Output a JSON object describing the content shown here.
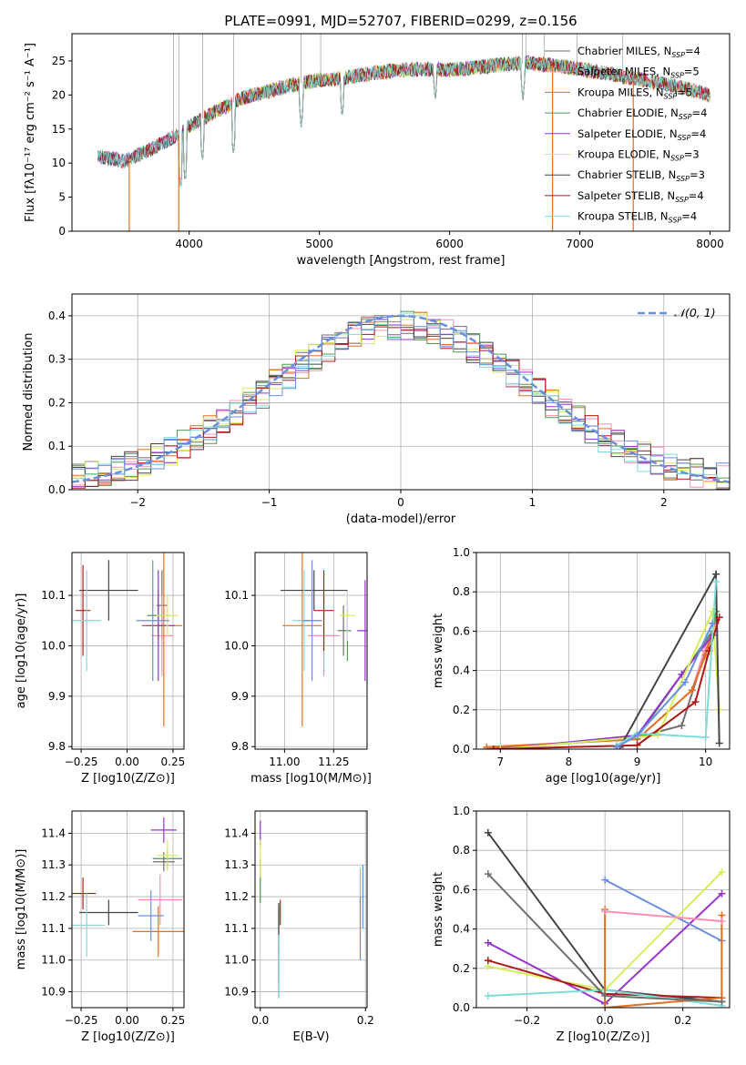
{
  "figure_title": "PLATE=0991, MJD=52707, FIBERID=0299, z=0.156",
  "series_colors": {
    "Chabrier MILES": "#6f6f6f",
    "Salpeter MILES": "#ff8fb0",
    "Kroupa MILES": "#e07020",
    "Chabrier ELODIE": "#4f9a4f",
    "Salpeter ELODIE": "#9932cc",
    "Kroupa ELODIE": "#d4ef5a",
    "Chabrier STELIB": "#444444",
    "Salpeter STELIB": "#b01818",
    "Kroupa STELIB": "#7fdcd6",
    "extra": "#6a8fdf"
  },
  "chart_data": [
    {
      "id": "spectrum",
      "type": "line",
      "title": "PLATE=0991, MJD=52707, FIBERID=0299, z=0.156",
      "xlabel": "wavelength [Angstrom, rest frame]",
      "ylabel": "Flux [fλ10⁻¹⁷ erg cm⁻² s⁻¹ A⁻¹]",
      "xlim": [
        3100,
        8150
      ],
      "ylim": [
        0,
        29
      ],
      "xticks": [
        "4000",
        "5000",
        "6000",
        "7000",
        "8000"
      ],
      "yticks": [
        "0",
        "5",
        "10",
        "15",
        "20",
        "25"
      ],
      "xtick_values": [
        4000,
        5000,
        6000,
        7000,
        8000
      ],
      "ytick_values": [
        0,
        5,
        10,
        15,
        20,
        25
      ],
      "legend_position": "upper right",
      "legend": [
        "Chabrier MILES, N_SSP=4",
        "Salpeter MILES, N_SSP=5",
        "Kroupa MILES, N_SSP=5",
        "Chabrier ELODIE, N_SSP=4",
        "Salpeter ELODIE, N_SSP=4",
        "Kroupa ELODIE, N_SSP=3",
        "Chabrier STELIB, N_SSP=3",
        "Salpeter STELIB, N_SSP=4",
        "Kroupa STELIB, N_SSP=4"
      ],
      "continuum": {
        "x": [
          3300,
          3500,
          3700,
          3900,
          4000,
          4200,
          4400,
          4600,
          4800,
          5000,
          5200,
          5400,
          5600,
          5800,
          6000,
          6200,
          6400,
          6600,
          6800,
          7000,
          7200,
          7400,
          7600,
          7800,
          8000
        ],
        "y": [
          11,
          10.3,
          12,
          14,
          15.5,
          17.5,
          19.5,
          20.5,
          21.5,
          22.2,
          22.5,
          23.2,
          23.6,
          23.8,
          23.7,
          24,
          24.5,
          24.7,
          24.3,
          23.8,
          23.2,
          22.5,
          21.8,
          21,
          20
        ]
      },
      "dips": [
        {
          "x": 3934,
          "y": 6
        },
        {
          "x": 3969,
          "y": 7
        },
        {
          "x": 4102,
          "y": 10
        },
        {
          "x": 4340,
          "y": 11
        },
        {
          "x": 4861,
          "y": 15
        },
        {
          "x": 5175,
          "y": 16.5
        },
        {
          "x": 5890,
          "y": 19
        },
        {
          "x": 6563,
          "y": 19
        }
      ],
      "model_drops": [
        {
          "x": 3540,
          "series": "Kroupa MILES"
        },
        {
          "x": 3920,
          "series": "Kroupa MILES"
        },
        {
          "x": 6790,
          "series": "Kroupa MILES"
        },
        {
          "x": 7410,
          "series": "Kroupa MILES"
        }
      ]
    },
    {
      "id": "residual-distribution",
      "type": "line",
      "xlabel": "(data-model)/error",
      "ylabel": "Normed distribution",
      "xlim": [
        -2.5,
        2.5
      ],
      "ylim": [
        0,
        0.45
      ],
      "xticks": [
        "−2",
        "−1",
        "0",
        "1",
        "2"
      ],
      "yticks": [
        "0.0",
        "0.1",
        "0.2",
        "0.3",
        "0.4"
      ],
      "xtick_values": [
        -2,
        -1,
        0,
        1,
        2
      ],
      "ytick_values": [
        0,
        0.1,
        0.2,
        0.3,
        0.4
      ],
      "legend_position": "upper right",
      "legend": [
        "𝒩(0, 1)"
      ],
      "gaussian": {
        "mu": 0,
        "sigma": 1,
        "peak": 0.4
      },
      "bin_width": 0.1
    },
    {
      "id": "age-vs-Z",
      "type": "scatter",
      "xlabel": "Z [log10(Z/Z⊙)]",
      "ylabel": "age [log10(age/yr)]",
      "xlim": [
        -0.3,
        0.31
      ],
      "ylim": [
        9.795,
        10.185
      ],
      "xticks": [
        "−0.25",
        "0.00",
        "0.25"
      ],
      "yticks": [
        "9.8",
        "9.9",
        "10.0",
        "10.1"
      ],
      "xtick_values": [
        -0.25,
        0,
        0.25
      ],
      "ytick_values": [
        9.8,
        9.9,
        10.0,
        10.1
      ],
      "points": [
        {
          "series": "Chabrier MILES",
          "x": 0.19,
          "xerr": 0.03,
          "y": 10.08,
          "yerr": 0.07
        },
        {
          "series": "Salpeter MILES",
          "x": 0.19,
          "xerr": 0.06,
          "y": 10.02,
          "yerr": 0.08
        },
        {
          "series": "Kroupa MILES",
          "x": 0.2,
          "xerr": 0.1,
          "y": 10.04,
          "yerr": 0.2
        },
        {
          "series": "Chabrier ELODIE",
          "x": 0.17,
          "xerr": 0.06,
          "y": 10.06,
          "yerr": 0.05
        },
        {
          "series": "Salpeter ELODIE",
          "x": 0.17,
          "xerr": 0.09,
          "y": 10.04,
          "yerr": 0.11
        },
        {
          "series": "Kroupa ELODIE",
          "x": 0.22,
          "xerr": 0.06,
          "y": 10.06,
          "yerr": 0.04
        },
        {
          "series": "Chabrier STELIB",
          "x": -0.1,
          "xerr": 0.16,
          "y": 10.11,
          "yerr": 0.06
        },
        {
          "series": "Salpeter STELIB",
          "x": -0.24,
          "xerr": 0.04,
          "y": 10.07,
          "yerr": 0.09
        },
        {
          "series": "Kroupa STELIB",
          "x": -0.22,
          "xerr": 0.08,
          "y": 10.05,
          "yerr": 0.1
        },
        {
          "series": "extra",
          "x": 0.14,
          "xerr": 0.09,
          "y": 10.05,
          "yerr": 0.12
        }
      ]
    },
    {
      "id": "age-vs-mass",
      "type": "scatter",
      "xlabel": "mass [log10(M/M⊙)]",
      "ylabel": "",
      "xlim": [
        10.85,
        11.42
      ],
      "ylim": [
        9.795,
        10.185
      ],
      "xticks": [
        "11.00",
        "11.25"
      ],
      "yticks": [
        "9.8",
        "9.9",
        "10.0",
        "10.1"
      ],
      "xtick_values": [
        11.0,
        11.25
      ],
      "ytick_values": [
        9.8,
        9.9,
        10.0,
        10.1
      ],
      "points": [
        {
          "series": "Chabrier MILES",
          "x": 11.3,
          "xerr": 0.03,
          "y": 10.03,
          "yerr": 0.05
        },
        {
          "series": "Salpeter MILES",
          "x": 11.2,
          "xerr": 0.08,
          "y": 10.02,
          "yerr": 0.08
        },
        {
          "series": "Kroupa MILES",
          "x": 11.09,
          "xerr": 0.1,
          "y": 10.04,
          "yerr": 0.2
        },
        {
          "series": "Chabrier ELODIE",
          "x": 11.32,
          "xerr": 0.02,
          "y": 10.03,
          "yerr": 0.06
        },
        {
          "series": "Salpeter ELODIE",
          "x": 11.41,
          "xerr": 0.04,
          "y": 10.03,
          "yerr": 0.1
        },
        {
          "series": "Kroupa ELODIE",
          "x": 11.32,
          "xerr": 0.04,
          "y": 10.06,
          "yerr": 0.05
        },
        {
          "series": "Chabrier STELIB",
          "x": 11.15,
          "xerr": 0.17,
          "y": 10.11,
          "yerr": 0.04
        },
        {
          "series": "Salpeter STELIB",
          "x": 11.2,
          "xerr": 0.05,
          "y": 10.07,
          "yerr": 0.08
        },
        {
          "series": "Kroupa STELIB",
          "x": 11.1,
          "xerr": 0.06,
          "y": 10.05,
          "yerr": 0.1
        },
        {
          "series": "extra",
          "x": 11.14,
          "xerr": 0.05,
          "y": 10.05,
          "yerr": 0.12
        }
      ]
    },
    {
      "id": "mass-weight-vs-age",
      "type": "line",
      "xlabel": "age [log10(age/yr)]",
      "ylabel": "mass weight",
      "xlim": [
        6.65,
        10.35
      ],
      "ylim": [
        0,
        1
      ],
      "xticks": [
        "7",
        "8",
        "9",
        "10"
      ],
      "yticks": [
        "0.0",
        "0.2",
        "0.4",
        "0.6",
        "0.8",
        "1.0"
      ],
      "xtick_values": [
        7,
        8,
        9,
        10
      ],
      "ytick_values": [
        0,
        0.2,
        0.4,
        0.6,
        0.8,
        1.0
      ],
      "series": [
        {
          "series": "Chabrier MILES",
          "x": [
            6.8,
            9.0,
            9.65,
            10.0,
            10.1
          ],
          "y": [
            0,
            0.06,
            0.12,
            0.5,
            0.58
          ]
        },
        {
          "series": "Salpeter MILES",
          "x": [
            6.8,
            9.0,
            9.8,
            10.0,
            10.15
          ],
          "y": [
            0.01,
            0.05,
            0.3,
            0.52,
            0.64
          ]
        },
        {
          "series": "Kroupa MILES",
          "x": [
            6.8,
            9.0,
            9.8,
            10.0,
            10.15
          ],
          "y": [
            0.01,
            0.05,
            0.3,
            0.48,
            0.67
          ]
        },
        {
          "series": "Chabrier ELODIE",
          "x": [
            7.0,
            9.0,
            10.1,
            10.15
          ],
          "y": [
            0,
            0.06,
            0.6,
            0.7
          ]
        },
        {
          "series": "Salpeter ELODIE",
          "x": [
            7.0,
            9.0,
            9.65,
            10.1
          ],
          "y": [
            0,
            0.07,
            0.38,
            0.58
          ]
        },
        {
          "series": "Kroupa ELODIE",
          "x": [
            7.0,
            9.3,
            10.1,
            10.2
          ],
          "y": [
            0,
            0.07,
            0.7,
            0.2
          ]
        },
        {
          "series": "Chabrier STELIB",
          "x": [
            8.75,
            10.15,
            10.2
          ],
          "y": [
            0.01,
            0.89,
            0.03
          ]
        },
        {
          "series": "Salpeter STELIB",
          "x": [
            6.9,
            9.0,
            9.85,
            10.05,
            10.2
          ],
          "y": [
            0,
            0.02,
            0.24,
            0.5,
            0.67
          ]
        },
        {
          "series": "Kroupa STELIB",
          "x": [
            8.7,
            9.0,
            10.0,
            10.15
          ],
          "y": [
            0.02,
            0.08,
            0.06,
            0.85
          ]
        },
        {
          "series": "extra",
          "x": [
            8.7,
            9.0,
            9.7,
            10.1
          ],
          "y": [
            0.01,
            0.07,
            0.34,
            0.64
          ]
        }
      ]
    },
    {
      "id": "mass-vs-Z",
      "type": "scatter",
      "xlabel": "Z [log10(Z/Z⊙)]",
      "ylabel": "mass [log10(M/M⊙)]",
      "xlim": [
        -0.3,
        0.31
      ],
      "ylim": [
        10.85,
        11.47
      ],
      "xticks": [
        "−0.25",
        "0.00",
        "0.25"
      ],
      "yticks": [
        "10.9",
        "11.0",
        "11.1",
        "11.2",
        "11.3",
        "11.4"
      ],
      "xtick_values": [
        -0.25,
        0,
        0.25
      ],
      "ytick_values": [
        10.9,
        11.0,
        11.1,
        11.2,
        11.3,
        11.4
      ],
      "points": [
        {
          "series": "Chabrier MILES",
          "x": 0.2,
          "xerr": 0.06,
          "y": 11.31,
          "yerr": 0.03
        },
        {
          "series": "Salpeter MILES",
          "x": 0.18,
          "xerr": 0.12,
          "y": 11.19,
          "yerr": 0.08
        },
        {
          "series": "Kroupa MILES",
          "x": 0.17,
          "xerr": 0.14,
          "y": 11.09,
          "yerr": 0.08
        },
        {
          "series": "Chabrier ELODIE",
          "x": 0.22,
          "xerr": 0.08,
          "y": 11.32,
          "yerr": 0.03
        },
        {
          "series": "Salpeter ELODIE",
          "x": 0.2,
          "xerr": 0.07,
          "y": 11.41,
          "yerr": 0.04
        },
        {
          "series": "Kroupa ELODIE",
          "x": 0.22,
          "xerr": 0.06,
          "y": 11.33,
          "yerr": 0.05
        },
        {
          "series": "Chabrier STELIB",
          "x": -0.1,
          "xerr": 0.16,
          "y": 11.15,
          "yerr": 0.04
        },
        {
          "series": "Salpeter STELIB",
          "x": -0.24,
          "xerr": 0.07,
          "y": 11.21,
          "yerr": 0.05
        },
        {
          "series": "Kroupa STELIB",
          "x": -0.22,
          "xerr": 0.1,
          "y": 11.11,
          "yerr": 0.1
        },
        {
          "series": "extra",
          "x": 0.13,
          "xerr": 0.07,
          "y": 11.14,
          "yerr": 0.08
        }
      ]
    },
    {
      "id": "mass-vs-EBV",
      "type": "scatter",
      "xlabel": "E(B-V)",
      "ylabel": "",
      "xlim": [
        -0.01,
        0.203
      ],
      "ylim": [
        10.85,
        11.47
      ],
      "xticks": [
        "0.0",
        "0.2"
      ],
      "yticks": [
        "10.9",
        "11.0",
        "11.1",
        "11.2",
        "11.3",
        "11.4"
      ],
      "xtick_values": [
        0.0,
        0.2
      ],
      "ytick_values": [
        10.9,
        11.0,
        11.1,
        11.2,
        11.3,
        11.4
      ],
      "points": [
        {
          "series": "Chabrier MILES",
          "x": 0.035,
          "xerr": 0.001,
          "y": 11.05,
          "yerr": 0.12
        },
        {
          "series": "Salpeter MILES",
          "x": 0.19,
          "xerr": 0.001,
          "y": 11.2,
          "yerr": 0.09
        },
        {
          "series": "Kroupa MILES",
          "x": 0.19,
          "xerr": 0.001,
          "y": 11.1,
          "yerr": 0.1
        },
        {
          "series": "Chabrier ELODIE",
          "x": 0.0,
          "xerr": 0.001,
          "y": 11.25,
          "yerr": 0.07
        },
        {
          "series": "Salpeter ELODIE",
          "x": 0.0,
          "xerr": 0.001,
          "y": 11.4,
          "yerr": 0.04
        },
        {
          "series": "Kroupa ELODIE",
          "x": 0.0,
          "xerr": 0.001,
          "y": 11.32,
          "yerr": 0.06
        },
        {
          "series": "Chabrier STELIB",
          "x": 0.035,
          "xerr": 0.001,
          "y": 11.03,
          "yerr": 0.15
        },
        {
          "series": "Salpeter STELIB",
          "x": 0.038,
          "xerr": 0.001,
          "y": 11.15,
          "yerr": 0.04
        },
        {
          "series": "Kroupa STELIB",
          "x": 0.035,
          "xerr": 0.001,
          "y": 10.98,
          "yerr": 0.1
        },
        {
          "series": "extra",
          "x": 0.195,
          "xerr": 0.001,
          "y": 11.2,
          "yerr": 0.1
        }
      ]
    },
    {
      "id": "mass-weight-vs-Z",
      "type": "line",
      "xlabel": "Z [log10(Z/Z⊙)]",
      "ylabel": "mass weight",
      "xlim": [
        -0.33,
        0.32
      ],
      "ylim": [
        0,
        1
      ],
      "xticks": [
        "−0.2",
        "0.0",
        "0.2"
      ],
      "yticks": [
        "0.0",
        "0.2",
        "0.4",
        "0.6",
        "0.8",
        "1.0"
      ],
      "xtick_values": [
        -0.2,
        0,
        0.2
      ],
      "ytick_values": [
        0,
        0.2,
        0.4,
        0.6,
        0.8,
        1.0
      ],
      "series": [
        {
          "series": "Chabrier STELIB",
          "x": [
            -0.3,
            0.0,
            0.3
          ],
          "y": [
            0.89,
            0.09,
            0.03
          ]
        },
        {
          "series": "Salpeter ELODIE",
          "x": [
            -0.3,
            0.0,
            0.3
          ],
          "y": [
            0.33,
            0.02,
            0.58
          ]
        },
        {
          "series": "Kroupa ELODIE",
          "x": [
            -0.3,
            0.0,
            0.3
          ],
          "y": [
            0.21,
            0.09,
            0.69
          ]
        },
        {
          "series": "Salpeter STELIB",
          "x": [
            -0.3,
            0.0,
            0.3
          ],
          "y": [
            0.24,
            0.07,
            0.05
          ]
        },
        {
          "series": "Kroupa STELIB",
          "x": [
            -0.3,
            0.0,
            0.3
          ],
          "y": [
            0.06,
            0.09,
            0.01
          ]
        },
        {
          "series": "extra",
          "x": [
            0.0,
            0.3
          ],
          "y": [
            0.65,
            0.34
          ]
        },
        {
          "series": "Kroupa MILES",
          "x": [
            0.0,
            0.0,
            0.3,
            0.3
          ],
          "y": [
            0.5,
            0.0,
            0.05,
            0.47
          ]
        },
        {
          "series": "Salpeter MILES",
          "x": [
            0.0,
            0.3
          ],
          "y": [
            0.49,
            0.44
          ]
        },
        {
          "series": "Chabrier MILES",
          "x": [
            -0.3,
            0.0,
            0.3
          ],
          "y": [
            0.68,
            0.06,
            0.03
          ]
        }
      ]
    }
  ]
}
